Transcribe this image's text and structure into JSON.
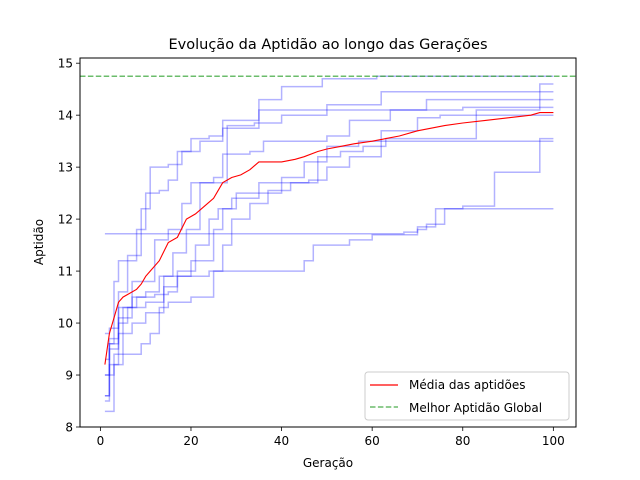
{
  "chart_data": {
    "type": "line",
    "title": "Evolução da Aptidão ao longo das Gerações",
    "xlabel": "Geração",
    "ylabel": "Aptidão",
    "xlim": [
      -4.5,
      105
    ],
    "ylim": [
      8,
      15.1
    ],
    "xticks": [
      0,
      20,
      40,
      60,
      80,
      100
    ],
    "yticks": [
      8,
      9,
      10,
      11,
      12,
      13,
      14,
      15
    ],
    "grid": false,
    "legend_position": "lower-right",
    "colors": {
      "runs": "#0000ff",
      "average": "#ff0000",
      "global_best": "#2ca02c"
    },
    "runs": [
      [
        [
          1,
          8.6
        ],
        [
          2,
          9.6
        ],
        [
          3,
          10.8
        ],
        [
          4,
          11.2
        ],
        [
          8,
          11.8
        ],
        [
          10,
          12.5
        ],
        [
          13,
          12.55
        ],
        [
          15,
          12.75
        ],
        [
          17,
          13.3
        ],
        [
          20,
          13.55
        ],
        [
          24,
          13.6
        ],
        [
          27,
          13.9
        ],
        [
          35,
          14.1
        ],
        [
          50,
          14.2
        ],
        [
          62,
          14.45
        ],
        [
          100,
          14.45
        ]
      ],
      [
        [
          1,
          8.5
        ],
        [
          2,
          9.7
        ],
        [
          4,
          10.6
        ],
        [
          6,
          11.3
        ],
        [
          9,
          12.2
        ],
        [
          11,
          13.0
        ],
        [
          15,
          13.05
        ],
        [
          18,
          13.3
        ],
        [
          22,
          13.5
        ],
        [
          27,
          13.75
        ],
        [
          35,
          14.3
        ],
        [
          40,
          14.55
        ],
        [
          49,
          14.7
        ],
        [
          61,
          14.75
        ],
        [
          100,
          14.75
        ]
      ],
      [
        [
          1,
          8.3
        ],
        [
          3,
          9.2
        ],
        [
          5,
          10.3
        ],
        [
          7,
          10.8
        ],
        [
          12,
          11.6
        ],
        [
          15,
          11.8
        ],
        [
          18,
          12.3
        ],
        [
          20,
          12.7
        ],
        [
          25,
          12.8
        ],
        [
          27,
          13.25
        ],
        [
          33,
          13.3
        ],
        [
          36,
          13.5
        ],
        [
          50,
          13.6
        ],
        [
          55,
          13.9
        ],
        [
          64,
          14.1
        ],
        [
          80,
          14.15
        ],
        [
          100,
          14.15
        ]
      ],
      [
        [
          1,
          9.0
        ],
        [
          2,
          9.6
        ],
        [
          4,
          10.1
        ],
        [
          7,
          10.5
        ],
        [
          10,
          10.6
        ],
        [
          13,
          10.9
        ],
        [
          16,
          11.35
        ],
        [
          19,
          11.8
        ],
        [
          22,
          12.7
        ],
        [
          28,
          13.8
        ],
        [
          34,
          13.85
        ],
        [
          40,
          14.0
        ],
        [
          50,
          14.1
        ],
        [
          70,
          14.1
        ],
        [
          72,
          14.3
        ],
        [
          100,
          14.3
        ]
      ],
      [
        [
          1,
          9.3
        ],
        [
          2,
          9.5
        ],
        [
          4,
          10.0
        ],
        [
          6,
          10.3
        ],
        [
          10,
          10.4
        ],
        [
          14,
          10.9
        ],
        [
          17,
          11.0
        ],
        [
          21,
          11.5
        ],
        [
          24,
          12.0
        ],
        [
          26,
          12.2
        ],
        [
          29,
          12.4
        ],
        [
          35,
          12.7
        ],
        [
          46,
          12.75
        ],
        [
          50,
          13.0
        ],
        [
          55,
          13.2
        ],
        [
          62,
          13.5
        ],
        [
          100,
          13.5
        ]
      ],
      [
        [
          1,
          9.8
        ],
        [
          2,
          9.9
        ],
        [
          4,
          10.3
        ],
        [
          8,
          10.5
        ],
        [
          12,
          10.55
        ],
        [
          15,
          10.6
        ],
        [
          17,
          10.9
        ],
        [
          20,
          11.2
        ],
        [
          25,
          11.8
        ],
        [
          27,
          12.2
        ],
        [
          30,
          12.5
        ],
        [
          37,
          12.55
        ],
        [
          42,
          12.7
        ],
        [
          48,
          13.2
        ],
        [
          53,
          13.3
        ],
        [
          58,
          13.4
        ],
        [
          60,
          13.4
        ],
        [
          63,
          13.55
        ],
        [
          80,
          13.55
        ],
        [
          83,
          14.1
        ],
        [
          95,
          14.1
        ],
        [
          97,
          14.6
        ],
        [
          100,
          14.6
        ]
      ],
      [
        [
          1,
          11.72
        ],
        [
          50,
          11.72
        ],
        [
          67,
          11.75
        ],
        [
          70,
          11.85
        ],
        [
          74,
          12.2
        ],
        [
          80,
          12.25
        ],
        [
          85,
          12.25
        ],
        [
          87,
          12.9
        ],
        [
          95,
          12.9
        ],
        [
          97,
          13.55
        ],
        [
          100,
          13.55
        ]
      ],
      [
        [
          1,
          8.6
        ],
        [
          2,
          9.2
        ],
        [
          4,
          9.8
        ],
        [
          7,
          10.0
        ],
        [
          10,
          10.2
        ],
        [
          14,
          10.7
        ],
        [
          17,
          10.9
        ],
        [
          24,
          11.0
        ],
        [
          30,
          11.0
        ],
        [
          38,
          11.0
        ],
        [
          44,
          11.0
        ],
        [
          45,
          11.2
        ],
        [
          47,
          11.5
        ],
        [
          52,
          11.5
        ],
        [
          55,
          11.6
        ],
        [
          60,
          11.7
        ],
        [
          65,
          11.7
        ],
        [
          70,
          11.8
        ],
        [
          72,
          11.9
        ],
        [
          76,
          12.2
        ],
        [
          84,
          12.2
        ],
        [
          100,
          12.2
        ]
      ],
      [
        [
          1,
          9.0
        ],
        [
          3,
          9.4
        ],
        [
          6,
          9.4
        ],
        [
          9,
          9.6
        ],
        [
          11,
          9.8
        ],
        [
          13,
          10.3
        ],
        [
          15,
          10.4
        ],
        [
          20,
          10.5
        ],
        [
          23,
          10.5
        ],
        [
          25,
          11.0
        ],
        [
          27,
          11.5
        ],
        [
          29,
          12.0
        ],
        [
          33,
          12.3
        ],
        [
          37,
          12.5
        ],
        [
          40,
          12.8
        ],
        [
          45,
          13.1
        ],
        [
          50,
          13.4
        ],
        [
          57,
          13.5
        ],
        [
          62,
          13.7
        ],
        [
          70,
          13.95
        ],
        [
          75,
          14.0
        ],
        [
          100,
          14.0
        ]
      ]
    ],
    "series": [
      {
        "name": "Média das aptidões",
        "points": [
          [
            1,
            9.2
          ],
          [
            2,
            9.8
          ],
          [
            3,
            10.1
          ],
          [
            4,
            10.4
          ],
          [
            5,
            10.5
          ],
          [
            6,
            10.55
          ],
          [
            8,
            10.65
          ],
          [
            9,
            10.75
          ],
          [
            10,
            10.9
          ],
          [
            11,
            11.0
          ],
          [
            13,
            11.2
          ],
          [
            15,
            11.55
          ],
          [
            17,
            11.65
          ],
          [
            19,
            12.0
          ],
          [
            21,
            12.1
          ],
          [
            23,
            12.25
          ],
          [
            25,
            12.4
          ],
          [
            27,
            12.7
          ],
          [
            29,
            12.8
          ],
          [
            31,
            12.85
          ],
          [
            33,
            12.95
          ],
          [
            35,
            13.1
          ],
          [
            38,
            13.1
          ],
          [
            40,
            13.1
          ],
          [
            43,
            13.15
          ],
          [
            45,
            13.2
          ],
          [
            48,
            13.3
          ],
          [
            50,
            13.35
          ],
          [
            53,
            13.4
          ],
          [
            56,
            13.45
          ],
          [
            60,
            13.5
          ],
          [
            63,
            13.55
          ],
          [
            66,
            13.6
          ],
          [
            70,
            13.7
          ],
          [
            73,
            13.75
          ],
          [
            76,
            13.8
          ],
          [
            80,
            13.85
          ],
          [
            85,
            13.9
          ],
          [
            90,
            13.95
          ],
          [
            95,
            14.0
          ],
          [
            97,
            14.05
          ],
          [
            100,
            14.05
          ]
        ]
      },
      {
        "name": "Melhor Aptidão Global",
        "value": 14.75
      }
    ]
  }
}
